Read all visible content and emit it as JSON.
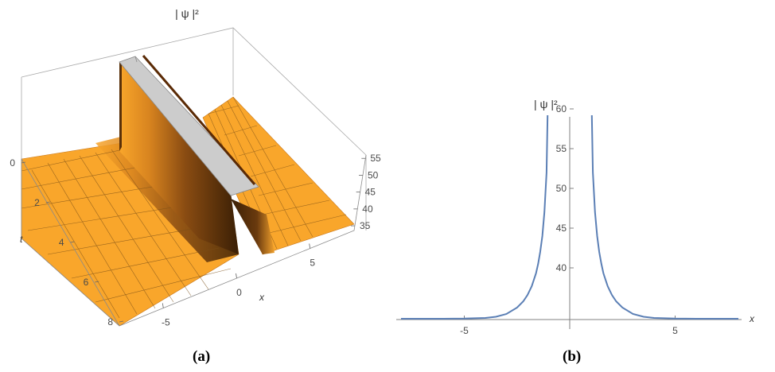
{
  "panels": {
    "a": {
      "caption": "(a)"
    },
    "b": {
      "caption": "(b)"
    }
  },
  "chart_data": [
    {
      "type": "surface",
      "title": "| ψ |²",
      "xlabel": "x",
      "ylabel": "t",
      "zlabel": "",
      "x_ticks": [
        "-5",
        "0",
        "5"
      ],
      "t_ticks": [
        "0",
        "2",
        "4",
        "6",
        "8"
      ],
      "z_ticks": [
        "35",
        "40",
        "45",
        "50",
        "55"
      ],
      "xlim": [
        -8,
        8
      ],
      "tlim": [
        0,
        8
      ],
      "zlim": [
        33.6,
        56
      ],
      "surface_color": "#f9a62b",
      "dark_color": "#3a1f05",
      "cap_color": "#cccccc",
      "grid": true,
      "profile": "|psi|^2 independent of t; peak near x = 0, clipped at top"
    },
    {
      "type": "line",
      "title": "| ψ |²",
      "xlabel": "x",
      "ylabel": "| ψ |²",
      "xlim": [
        -8,
        8
      ],
      "ylim": [
        33.5,
        60.5
      ],
      "x_ticks": [
        "-5",
        "5"
      ],
      "y_ticks": [
        "40",
        "45",
        "50",
        "55",
        "60"
      ],
      "line_color": "#5b7fb5",
      "series": [
        {
          "name": "",
          "segments": [
            {
              "x": [
                -8.0,
                -6.0,
                -5.0,
                -4.0,
                -3.5,
                -3.0,
                -2.5,
                -2.2,
                -2.0,
                -1.8,
                -1.6,
                -1.5,
                -1.4,
                -1.3,
                -1.2,
                -1.1,
                -1.05
              ],
              "y": [
                33.6,
                33.6,
                33.62,
                33.7,
                33.85,
                34.2,
                35.0,
                35.8,
                36.6,
                37.7,
                39.3,
                40.5,
                42.0,
                44.0,
                47.0,
                52.0,
                59.2
              ]
            },
            {
              "x": [
                1.05,
                1.1,
                1.2,
                1.3,
                1.4,
                1.5,
                1.6,
                1.8,
                2.0,
                2.2,
                2.5,
                3.0,
                3.5,
                4.0,
                5.0,
                6.0,
                8.0
              ],
              "y": [
                59.2,
                52.0,
                47.0,
                44.0,
                42.0,
                40.5,
                39.3,
                37.7,
                36.6,
                35.8,
                35.0,
                34.2,
                33.85,
                33.7,
                33.62,
                33.6,
                33.6
              ]
            }
          ]
        }
      ]
    }
  ]
}
